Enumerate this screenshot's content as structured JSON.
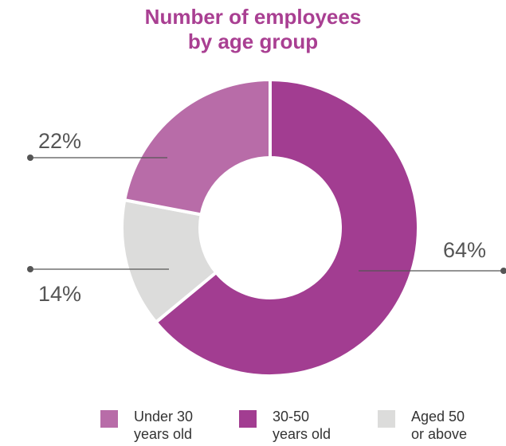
{
  "chart_data": {
    "type": "pie",
    "title": [
      "Number of employees",
      "by age group"
    ],
    "slices": [
      {
        "label": [
          "30-50",
          "years old"
        ],
        "value": 64,
        "display": "64%",
        "color": "#a23d91"
      },
      {
        "label": [
          "Aged 50",
          "or above"
        ],
        "value": 14,
        "display": "14%",
        "color": "#dcdcdb"
      },
      {
        "label": [
          "Under 30",
          "years old"
        ],
        "value": 22,
        "display": "22%",
        "color": "#b86ca8"
      }
    ],
    "legend_order": [
      2,
      0,
      1
    ],
    "legend_position": "bottom"
  }
}
